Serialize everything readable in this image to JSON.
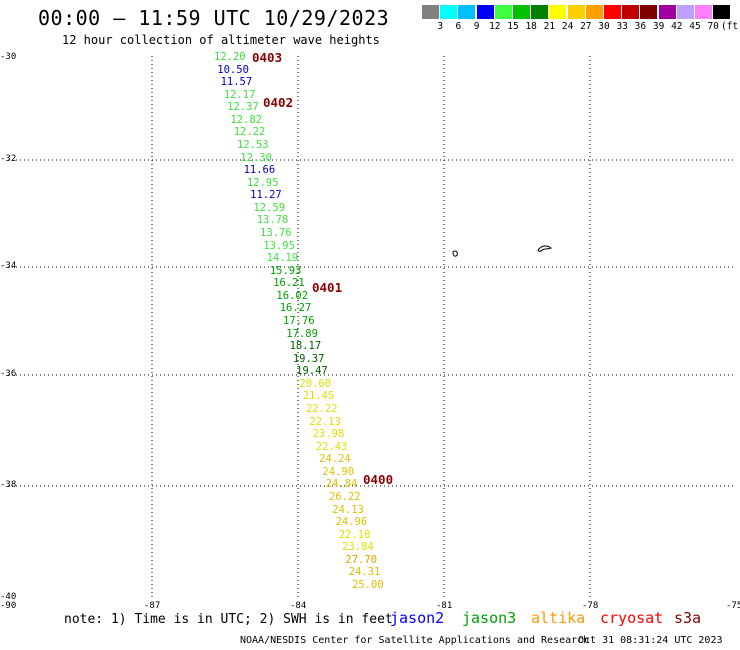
{
  "title": "00:00 – 11:59 UTC 10/29/2023",
  "subtitle": "12 hour collection of altimeter wave heights",
  "legend": {
    "colors": [
      "#808080",
      "#00ffff",
      "#00c0ff",
      "#0000ff",
      "#40ff40",
      "#00c000",
      "#008000",
      "#ffff00",
      "#ffd000",
      "#ffa000",
      "#ff0000",
      "#c00000",
      "#800000",
      "#a000a0",
      "#c0a0ff",
      "#ff80ff",
      "#000000"
    ],
    "labels": [
      "3",
      "6",
      "9",
      "12",
      "15",
      "18",
      "21",
      "24",
      "27",
      "30",
      "33",
      "36",
      "39",
      "42",
      "45",
      "70"
    ],
    "unit": "(ft)"
  },
  "lat_labels": [
    "-30",
    "-32",
    "-34",
    "-36",
    "-38",
    "-40"
  ],
  "lon_labels": [
    "-90",
    "-87",
    "-84",
    "-81",
    "-78",
    "-75"
  ],
  "measurements": [
    {
      "v": "12.20",
      "c": "#40e040"
    },
    {
      "v": "10.50",
      "c": "#0000c0"
    },
    {
      "v": "11.57",
      "c": "#0000c0"
    },
    {
      "v": "12.17",
      "c": "#40e040"
    },
    {
      "v": "12.37",
      "c": "#40e040"
    },
    {
      "v": "12.82",
      "c": "#40e040"
    },
    {
      "v": "12.22",
      "c": "#40e040"
    },
    {
      "v": "12.53",
      "c": "#40e040"
    },
    {
      "v": "12.30",
      "c": "#40e040"
    },
    {
      "v": "11.66",
      "c": "#0000c0"
    },
    {
      "v": "12.95",
      "c": "#40e040"
    },
    {
      "v": "11.27",
      "c": "#0000c0"
    },
    {
      "v": "12.59",
      "c": "#40e040"
    },
    {
      "v": "13.78",
      "c": "#40e040"
    },
    {
      "v": "13.76",
      "c": "#40e040"
    },
    {
      "v": "13.95",
      "c": "#40e040"
    },
    {
      "v": "14.19",
      "c": "#40e040"
    },
    {
      "v": "15.93",
      "c": "#00a000"
    },
    {
      "v": "16.21",
      "c": "#00a000"
    },
    {
      "v": "16.02",
      "c": "#00a000"
    },
    {
      "v": "16.27",
      "c": "#00a000"
    },
    {
      "v": "17.76",
      "c": "#00a000"
    },
    {
      "v": "17.89",
      "c": "#00a000"
    },
    {
      "v": "18.17",
      "c": "#006000"
    },
    {
      "v": "19.37",
      "c": "#006000"
    },
    {
      "v": "19.47",
      "c": "#006000"
    },
    {
      "v": "20.60",
      "c": "#e0e000"
    },
    {
      "v": "21.45",
      "c": "#e0e000"
    },
    {
      "v": "22.22",
      "c": "#e0e000"
    },
    {
      "v": "22.13",
      "c": "#e0e000"
    },
    {
      "v": "23.98",
      "c": "#e0e000"
    },
    {
      "v": "22.43",
      "c": "#e0e000"
    },
    {
      "v": "24.24",
      "c": "#e0c000"
    },
    {
      "v": "24.90",
      "c": "#e0c000"
    },
    {
      "v": "24.84",
      "c": "#e0c000"
    },
    {
      "v": "26.22",
      "c": "#e0c000"
    },
    {
      "v": "24.13",
      "c": "#e0c000"
    },
    {
      "v": "24.96",
      "c": "#e0c000"
    },
    {
      "v": "22.10",
      "c": "#e0e000"
    },
    {
      "v": "23.84",
      "c": "#e0e000"
    },
    {
      "v": "27.70",
      "c": "#e0a000"
    },
    {
      "v": "24.31",
      "c": "#e0c000"
    },
    {
      "v": "25.00",
      "c": "#e0c000"
    }
  ],
  "passes": [
    "0403",
    "0402",
    "0401",
    "0400"
  ],
  "note": "note: 1) Time is in UTC; 2) SWH is in feet",
  "satellites": [
    {
      "name": "jason2",
      "color": "#0000ff"
    },
    {
      "name": "jason3",
      "color": "#00a000"
    },
    {
      "name": "altika",
      "color": "#ff9900"
    },
    {
      "name": "cryosat",
      "color": "#ff0000"
    },
    {
      "name": "s3a",
      "color": "#800000"
    }
  ],
  "credit": "NOAA/NESDIS Center for Satellite Applications and Research",
  "timestamp": "Oct 31 08:31:24 UTC 2023"
}
